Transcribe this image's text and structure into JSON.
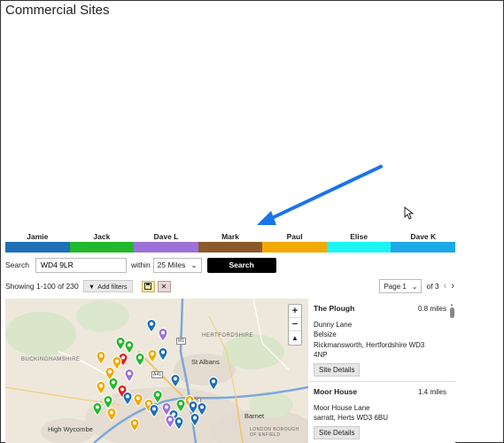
{
  "page": {
    "title": "Commercial Sites"
  },
  "agents": [
    {
      "name": "Jamie",
      "color": "#1f6fb5"
    },
    {
      "name": "Jack",
      "color": "#22b82b"
    },
    {
      "name": "Dave L",
      "color": "#9b72d9"
    },
    {
      "name": "Mark",
      "color": "#8b5a2b"
    },
    {
      "name": "Paul",
      "color": "#f2a900"
    },
    {
      "name": "Elise",
      "color": "#1ef4f4"
    },
    {
      "name": "Dave K",
      "color": "#1ea8e6"
    }
  ],
  "annotation": {
    "arrow_color": "#1a73e8",
    "arrow_points_to": "Mark"
  },
  "search": {
    "label": "Search",
    "value": "WD4 9LR",
    "within_label": "within",
    "within_value": "25 Miles",
    "button_label": "Search"
  },
  "results": {
    "showing_text": "Showing 1-100 of 230",
    "add_filters_label": "Add filters",
    "page_label": "Page 1",
    "of_pages": "of 3"
  },
  "map": {
    "zoom_in": "+",
    "zoom_out": "−",
    "compass": "▲",
    "regions": [
      "HERTFORDSHIRE",
      "BUCKINGHAMSHIRE",
      "LONDON BOROUGH OF ENFIELD"
    ],
    "towns": [
      "St Albans",
      "High Wycombe",
      "Barnet"
    ],
    "roads": [
      "M1",
      "A41",
      "M25"
    ],
    "pin_colors": {
      "blue": "#1f6fb5",
      "green": "#22b82b",
      "purple": "#9b72d9",
      "yellow": "#f2a900",
      "red": "#e02020"
    }
  },
  "listings": [
    {
      "title": "The Plough",
      "distance": "0.8 miles",
      "address": [
        "Dunny Lane",
        "Belsize",
        "Rickmansworth, Hertfordshire WD3",
        "4NP"
      ],
      "button_label": "Site Details"
    },
    {
      "title": "Moor House",
      "distance": "1.4 miles",
      "address": [
        "Moor House Lane",
        "sarratt, Herts WD3 6BU"
      ],
      "button_label": "Site Details"
    }
  ]
}
